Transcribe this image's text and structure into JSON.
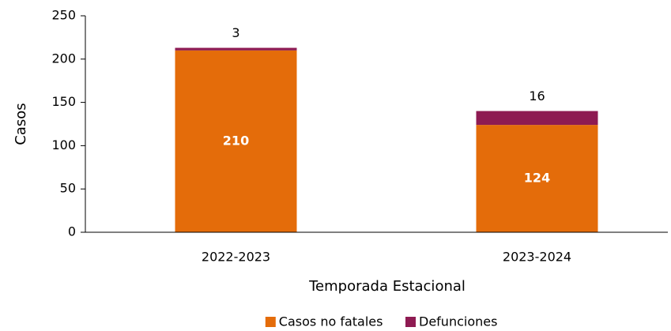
{
  "chart_data": {
    "type": "stacked_bar",
    "categories": [
      "2022-2023",
      "2023-2024"
    ],
    "series": [
      {
        "name": "Casos no fatales",
        "color": "#e46c0a",
        "values": [
          210,
          124
        ]
      },
      {
        "name": "Defunciones",
        "color": "#8e1b52",
        "values": [
          3,
          16
        ]
      }
    ],
    "xlabel": "Temporada Estacional",
    "ylabel": "Casos",
    "ylim": [
      0,
      250
    ],
    "yticks": [
      0,
      50,
      100,
      150,
      200,
      250
    ],
    "legend": "bottom"
  }
}
